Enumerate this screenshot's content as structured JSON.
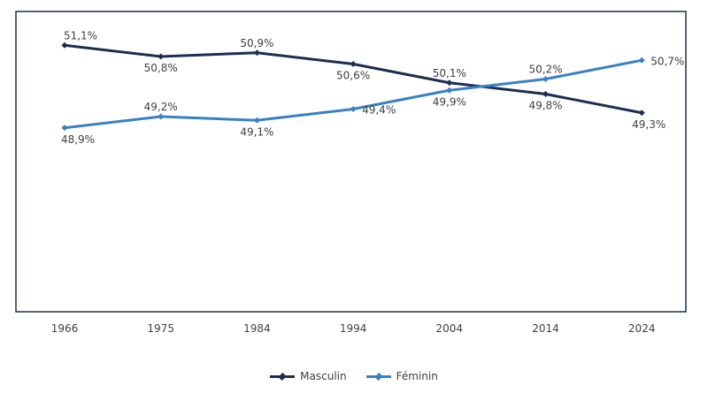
{
  "chart_data": {
    "type": "line",
    "x": [
      "1966",
      "1975",
      "1984",
      "1994",
      "2004",
      "2014",
      "2024"
    ],
    "ylim": [
      44,
      52
    ],
    "grid": false,
    "legend_position": "bottom",
    "series": [
      {
        "name": "Masculin",
        "color": "#1c2e4f",
        "values": [
          51.1,
          50.8,
          50.9,
          50.6,
          50.1,
          49.8,
          49.3
        ],
        "labels": [
          "51,1%",
          "50,8%",
          "50,9%",
          "50,6%",
          "50,1%",
          "49,8%",
          "49,3%"
        ]
      },
      {
        "name": "Féminin",
        "color": "#3a80c4",
        "values": [
          48.9,
          49.2,
          49.1,
          49.4,
          49.9,
          50.2,
          50.7
        ],
        "labels": [
          "48,9%",
          "49,2%",
          "49,1%",
          "49,4%",
          "49,9%",
          "50,2%",
          "50,7%"
        ]
      }
    ]
  }
}
